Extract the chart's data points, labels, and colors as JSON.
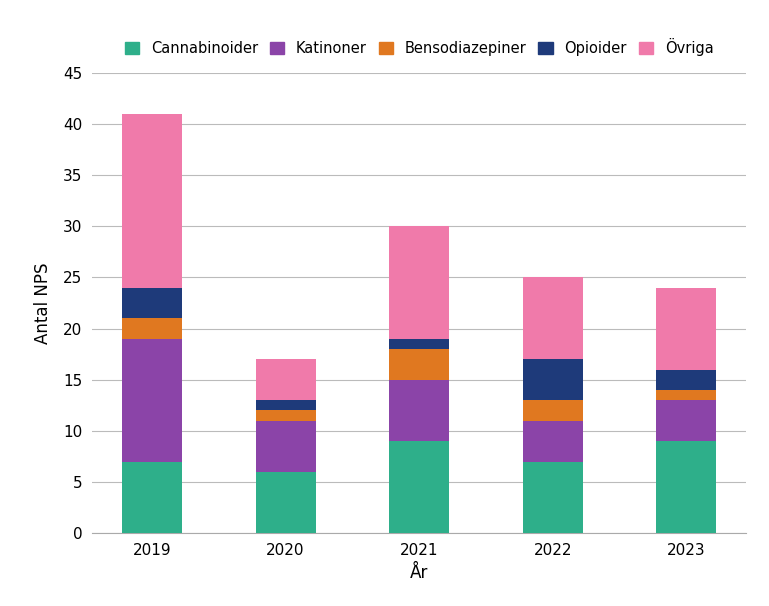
{
  "years": [
    "2019",
    "2020",
    "2021",
    "2022",
    "2023"
  ],
  "categories": [
    "Cannabinoider",
    "Katinoner",
    "Bensodiazepiner",
    "Opioider",
    "Övriga"
  ],
  "colors": [
    "#2EAF8A",
    "#8B44A8",
    "#E07820",
    "#1E3A7A",
    "#F07AAA"
  ],
  "values": {
    "Cannabinoider": [
      7,
      6,
      9,
      7,
      9
    ],
    "Katinoner": [
      12,
      5,
      6,
      4,
      4
    ],
    "Bensodiazepiner": [
      2,
      1,
      3,
      2,
      1
    ],
    "Opioider": [
      3,
      1,
      1,
      4,
      2
    ],
    "Övriga": [
      17,
      4,
      11,
      8,
      8
    ]
  },
  "xlabel": "År",
  "ylabel": "Antal NPS",
  "ylim": [
    0,
    45
  ],
  "yticks": [
    0,
    5,
    10,
    15,
    20,
    25,
    30,
    35,
    40,
    45
  ],
  "bar_width": 0.45,
  "figsize": [
    7.69,
    6.06
  ],
  "dpi": 100,
  "background_color": "#FFFFFF",
  "grid_color": "#BBBBBB",
  "spine_color": "#AAAAAA"
}
